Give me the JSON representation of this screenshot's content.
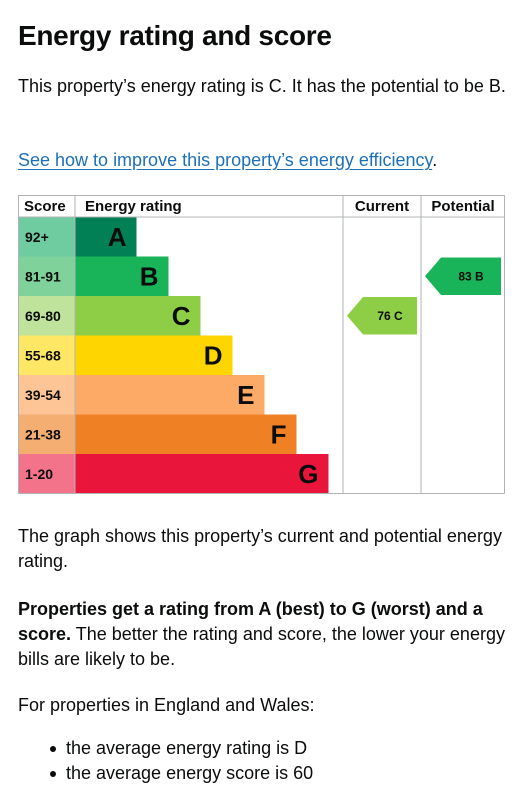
{
  "heading": "Energy rating and score",
  "intro": "This property’s energy rating is C. It has the potential to be B.",
  "improve_link": "See how to improve this property’s energy efficiency",
  "improve_link_suffix": ".",
  "chart_data": {
    "type": "table",
    "headers": {
      "score": "Score",
      "rating": "Energy rating",
      "current": "Current",
      "potential": "Potential"
    },
    "bands": [
      {
        "score": "92+",
        "letter": "A",
        "color": "#008054",
        "letter_color": "#0b0c0c",
        "score_color": "#6fcba0"
      },
      {
        "score": "81-91",
        "letter": "B",
        "color": "#19b459",
        "letter_color": "#0b0c0c",
        "score_color": "#7fd29a"
      },
      {
        "score": "69-80",
        "letter": "C",
        "color": "#8dce46",
        "letter_color": "#0b0c0c",
        "score_color": "#bfe39a"
      },
      {
        "score": "55-68",
        "letter": "D",
        "color": "#ffd500",
        "letter_color": "#0b0c0c",
        "score_color": "#ffe766"
      },
      {
        "score": "39-54",
        "letter": "E",
        "color": "#fcaa65",
        "letter_color": "#0b0c0c",
        "score_color": "#fdc596"
      },
      {
        "score": "21-38",
        "letter": "F",
        "color": "#ef8023",
        "letter_color": "#0b0c0c",
        "score_color": "#f4ae72"
      },
      {
        "score": "1-20",
        "letter": "G",
        "color": "#e9153b",
        "letter_color": "#0b0c0c",
        "score_color": "#f2738a"
      }
    ],
    "current": {
      "score": 76,
      "band": "C",
      "label": "76  C",
      "color": "#8dce46"
    },
    "potential": {
      "score": 83,
      "band": "B",
      "label": "83  B",
      "color": "#19b459"
    }
  },
  "graph_text": "The graph shows this property’s current and potential energy rating.",
  "ratings_bold": "Properties get a rating from A (best) to G (worst) and a score.",
  "ratings_rest": " The better the rating and score, the lower your energy bills are likely to be.",
  "regional_intro": "For properties in England and Wales:",
  "bullets": [
    "the average energy rating is D",
    "the average energy score is 60"
  ]
}
